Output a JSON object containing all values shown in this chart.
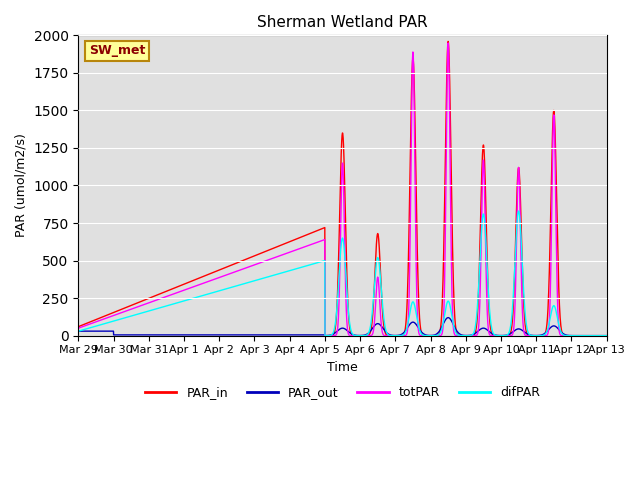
{
  "title": "Sherman Wetland PAR",
  "ylabel": "PAR (umol/m2/s)",
  "xlabel": "Time",
  "station_label": "SW_met",
  "ylim": [
    0,
    2000
  ],
  "line_colors": {
    "PAR_in": "#ff0000",
    "PAR_out": "#0000bb",
    "totPAR": "#ff00ff",
    "difPAR": "#00ffff"
  },
  "background_color": "#e0e0e0",
  "fig_background": "#ffffff",
  "x_tick_labels": [
    "Mar 29",
    "Mar 30",
    "Mar 31",
    "Apr 1",
    "Apr 2",
    "Apr 3",
    "Apr 4",
    "Apr 5",
    "Apr 6",
    "Apr 7",
    "Apr 8",
    "Apr 9",
    "Apr 10",
    "Apr 11",
    "Apr 12",
    "Apr 13"
  ],
  "title_fontsize": 11,
  "axis_fontsize": 9,
  "tick_fontsize": 8
}
